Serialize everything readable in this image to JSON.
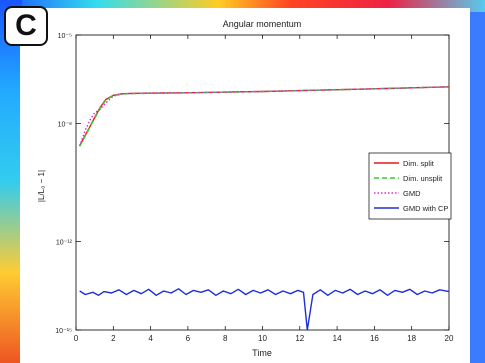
{
  "panel_label": "C",
  "colors": {
    "series_red": "#e41a1c",
    "series_green": "#33cc33",
    "series_magenta": "#cc33cc",
    "series_blue": "#1f2fd6",
    "axis": "#000000"
  },
  "chart_data": {
    "type": "line",
    "title": "Angular momentum",
    "xlabel": "Time",
    "ylabel": "|L/L₀ − 1|",
    "x_scale": "linear",
    "y_scale": "log",
    "xlim": [
      0,
      20
    ],
    "ylim": [
      1e-15,
      1e-05
    ],
    "xticks": [
      0,
      2,
      4,
      6,
      8,
      10,
      12,
      14,
      16,
      18,
      20
    ],
    "yticks": [
      {
        "value": 1e-15,
        "label": "10⁻¹⁵"
      },
      {
        "value": 1e-12,
        "label": "10⁻¹²"
      },
      {
        "value": 1e-08,
        "label": "10⁻⁸"
      },
      {
        "value": 1e-05,
        "label": "10⁻⁵"
      }
    ],
    "grid": false,
    "legend_position": "right",
    "series": [
      {
        "name": "Dim. split",
        "color": "#e41a1c",
        "style": "solid",
        "x": [
          0.2,
          0.5,
          0.8,
          1.0,
          1.3,
          1.6,
          2.0,
          2.5,
          3,
          4,
          6,
          8,
          10,
          12,
          14,
          16,
          18,
          20
        ],
        "y": [
          1.8e-09,
          4e-09,
          9e-09,
          1.6e-08,
          3.5e-08,
          6.5e-08,
          9e-08,
          1.02e-07,
          1.05e-07,
          1.07e-07,
          1.1e-07,
          1.16e-07,
          1.22e-07,
          1.3e-07,
          1.4e-07,
          1.5e-07,
          1.62e-07,
          1.75e-07
        ]
      },
      {
        "name": "Dim. unsplit",
        "color": "#33cc33",
        "style": "dashed",
        "x": [
          0.2,
          0.5,
          0.8,
          1.0,
          1.3,
          1.6,
          2.0,
          2.5,
          3,
          4,
          6,
          8,
          10,
          12,
          14,
          16,
          18,
          20
        ],
        "y": [
          1.7e-09,
          3.8e-09,
          8.6e-09,
          1.5e-08,
          3.3e-08,
          6.2e-08,
          8.8e-08,
          1e-07,
          1.03e-07,
          1.06e-07,
          1.09e-07,
          1.15e-07,
          1.21e-07,
          1.29e-07,
          1.39e-07,
          1.49e-07,
          1.61e-07,
          1.74e-07
        ]
      },
      {
        "name": "GMD",
        "color": "#cc33cc",
        "style": "dotted",
        "x": [
          0.2,
          0.5,
          0.8,
          1.0,
          1.3,
          1.6,
          2.0,
          2.5,
          3,
          4,
          6,
          8,
          10,
          12,
          14,
          16,
          18,
          20
        ],
        "y": [
          1.7e-09,
          6e-09,
          1.5e-08,
          2.3e-08,
          3e-08,
          5e-08,
          8.5e-08,
          1.01e-07,
          1.05e-07,
          1.07e-07,
          1.1e-07,
          1.16e-07,
          1.22e-07,
          1.3e-07,
          1.4e-07,
          1.5e-07,
          1.62e-07,
          1.75e-07
        ]
      },
      {
        "name": "GMD with CP",
        "color": "#1f2fd6",
        "style": "solid",
        "x": [
          0.2,
          0.5,
          0.9,
          1.2,
          1.5,
          1.9,
          2.3,
          2.7,
          3.1,
          3.5,
          3.9,
          4.3,
          4.7,
          5.1,
          5.5,
          5.9,
          6.3,
          6.7,
          7.1,
          7.5,
          7.9,
          8.3,
          8.7,
          9.1,
          9.5,
          9.9,
          10.3,
          10.7,
          11.1,
          11.5,
          11.9,
          12.2,
          12.4,
          12.7,
          13.1,
          13.5,
          13.9,
          14.3,
          14.7,
          15.1,
          15.5,
          15.9,
          16.3,
          16.7,
          17.1,
          17.5,
          17.9,
          18.3,
          18.7,
          19.1,
          19.5,
          20.0
        ],
        "y": [
          2.1e-14,
          1.6e-14,
          1.9e-14,
          1.5e-14,
          2e-14,
          1.8e-14,
          2.3e-14,
          1.6e-14,
          2.2e-14,
          1.7e-14,
          2.4e-14,
          1.5e-14,
          2.1e-14,
          1.8e-14,
          2.5e-14,
          1.6e-14,
          2.2e-14,
          1.9e-14,
          2.3e-14,
          1.5e-14,
          2.1e-14,
          1.7e-14,
          2.4e-14,
          1.6e-14,
          2.2e-14,
          1.8e-14,
          2.3e-14,
          1.6e-14,
          2.1e-14,
          1.7e-14,
          2.2e-14,
          1.9e-14,
          1e-15,
          1.6e-14,
          2.3e-14,
          1.5e-14,
          2.2e-14,
          1.8e-14,
          2.4e-14,
          1.6e-14,
          2.1e-14,
          1.7e-14,
          2.3e-14,
          1.5e-14,
          2.2e-14,
          1.9e-14,
          2.4e-14,
          1.6e-14,
          2.1e-14,
          1.8e-14,
          2.3e-14,
          2e-14
        ]
      }
    ]
  }
}
